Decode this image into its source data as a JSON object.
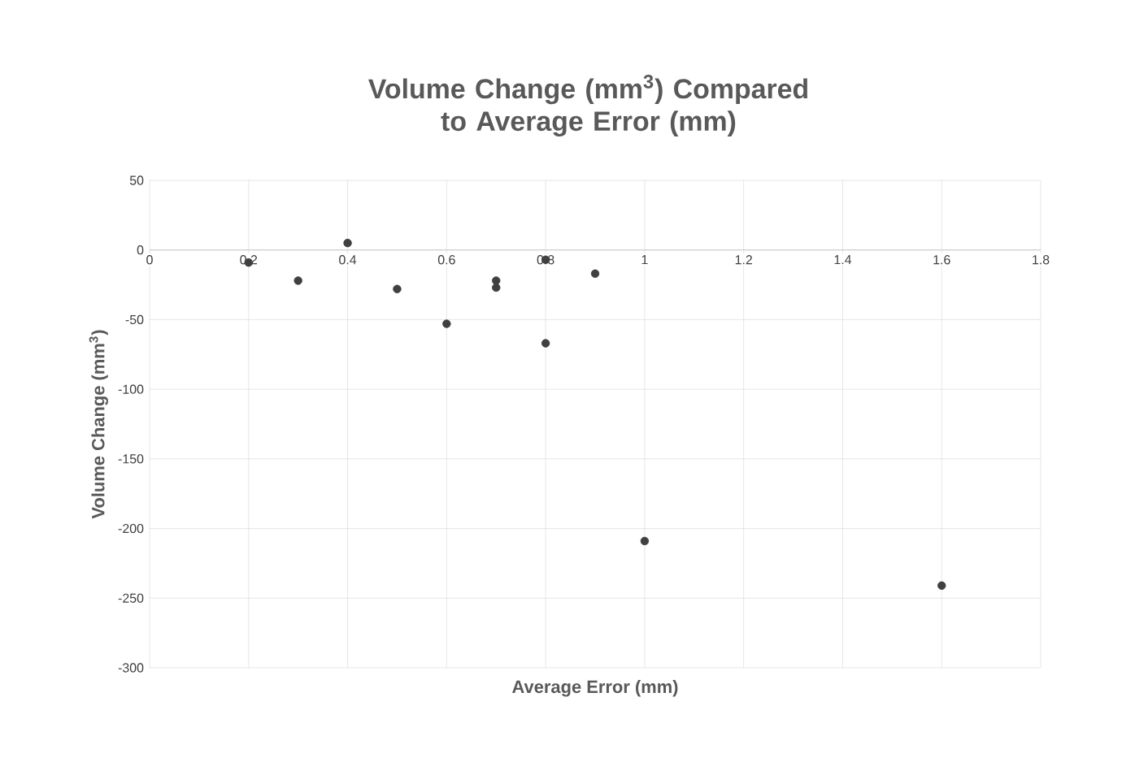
{
  "chart_data": {
    "type": "scatter",
    "title": "Volume Change (mm$^{3}$) Compared to Average Error (mm)",
    "xlabel": "Average Error (mm)",
    "ylabel": "Volume Change (mm$^{3}$)",
    "x": [
      0.2,
      0.3,
      0.4,
      0.5,
      0.6,
      0.7,
      0.7,
      0.8,
      0.8,
      0.9,
      1.0,
      1.6
    ],
    "values": [
      -9,
      -22,
      5,
      -28,
      -53,
      -22,
      -27,
      -7,
      -67,
      -17,
      -209,
      -241
    ],
    "color": "#404040",
    "marker": "circle",
    "xlim": [
      0,
      1.8
    ],
    "ylim": [
      -300,
      50
    ],
    "xticks": [
      0,
      0.2,
      0.4,
      0.6,
      0.8,
      1,
      1.2,
      1.4,
      1.6,
      1.8
    ],
    "yticks": [
      -300,
      -250,
      -200,
      -150,
      -100,
      -50,
      0,
      50
    ],
    "grid": true
  }
}
